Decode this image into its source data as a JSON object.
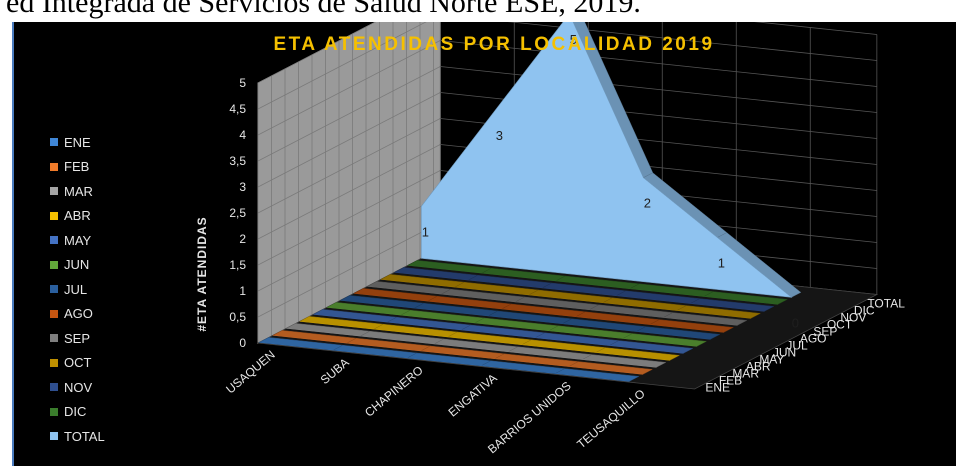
{
  "caption": "ed Integrada de Servicios de Salud Norte ESE, 2019.",
  "chart_data": {
    "type": "area",
    "title": "ETA ATENDIDAS POR LOCALIDAD 2019",
    "ylabel": "#ETA    ATENDIDAS",
    "ylim": [
      0,
      5
    ],
    "yticks": [
      "0",
      "0,5",
      "1",
      "1,5",
      "2",
      "2,5",
      "3",
      "3,5",
      "4",
      "4,5",
      "5"
    ],
    "categories": [
      "USAQUEN",
      "SUBA",
      "CHAPINERO",
      "ENGATIVA",
      "BARRIOS UNIDOS",
      "TEUSAQUILLO"
    ],
    "series": [
      {
        "name": "ENE",
        "color": "#3f86d6",
        "values": [
          0,
          0,
          0,
          0,
          0,
          0
        ]
      },
      {
        "name": "FEB",
        "color": "#f07b2a",
        "values": [
          0,
          0,
          0,
          0,
          0,
          0
        ]
      },
      {
        "name": "MAR",
        "color": "#a5a5a5",
        "values": [
          0,
          0,
          0,
          0,
          0,
          0
        ]
      },
      {
        "name": "ABR",
        "color": "#f5c000",
        "values": [
          0,
          0,
          0,
          0,
          0,
          0
        ]
      },
      {
        "name": "MAY",
        "color": "#4472c4",
        "values": [
          0,
          0,
          0,
          0,
          0,
          0
        ]
      },
      {
        "name": "JUN",
        "color": "#62a83a",
        "values": [
          0,
          0,
          0,
          0,
          0,
          0
        ]
      },
      {
        "name": "JUL",
        "color": "#2a5f9e",
        "values": [
          0,
          0,
          0,
          0,
          0,
          0
        ]
      },
      {
        "name": "AGO",
        "color": "#c55511",
        "values": [
          0,
          0,
          0,
          0,
          0,
          0
        ]
      },
      {
        "name": "SEP",
        "color": "#7f7f7f",
        "values": [
          0,
          0,
          0,
          0,
          0,
          0
        ]
      },
      {
        "name": "OCT",
        "color": "#bf9000",
        "values": [
          0,
          0,
          0,
          0,
          0,
          0
        ]
      },
      {
        "name": "NOV",
        "color": "#2f4f8f",
        "values": [
          0,
          0,
          0,
          0,
          0,
          0
        ]
      },
      {
        "name": "DIC",
        "color": "#3a7d2c",
        "values": [
          0,
          0,
          0,
          0,
          0,
          0
        ]
      },
      {
        "name": "TOTAL",
        "color": "#8fc3f0",
        "values": [
          1,
          3,
          5,
          2,
          1,
          0
        ],
        "labels": [
          "1",
          "3",
          "5",
          "2",
          "1",
          "0"
        ]
      }
    ]
  }
}
